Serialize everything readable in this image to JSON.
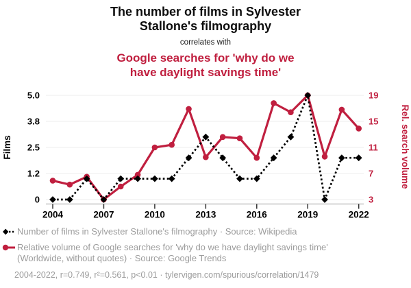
{
  "header": {
    "title_lines": [
      "The number of films in Sylvester",
      "Stallone's filmography"
    ],
    "connector": "correlates with",
    "subtitle_lines": [
      "Google searches for 'why do we",
      "have daylight savings time'"
    ]
  },
  "chart_data": {
    "type": "line",
    "x": [
      2004,
      2005,
      2006,
      2007,
      2008,
      2009,
      2010,
      2011,
      2012,
      2013,
      2014,
      2015,
      2016,
      2017,
      2018,
      2019,
      2020,
      2021,
      2022
    ],
    "x_ticks": [
      2004,
      2007,
      2010,
      2013,
      2016,
      2019,
      2022
    ],
    "series": [
      {
        "name": "Number of films in Sylvester Stallone's filmography",
        "axis": "left",
        "color": "#000000",
        "line_style": "dashed",
        "marker": "diamond",
        "values": [
          0,
          0,
          1,
          0,
          1,
          1,
          1,
          1,
          2,
          3,
          2,
          1,
          1,
          2,
          3,
          5,
          0,
          2,
          2
        ]
      },
      {
        "name": "Relative volume of Google searches for 'why do we have daylight savings time'",
        "axis": "right",
        "color": "#c01f3f",
        "line_style": "solid",
        "marker": "circle",
        "values": [
          5.9,
          5.3,
          6.5,
          3,
          5,
          6.8,
          11,
          11.4,
          16.9,
          9.5,
          12.6,
          12.4,
          9.4,
          17.8,
          16.4,
          19,
          9.6,
          16.8,
          13.9
        ]
      }
    ],
    "y_left": {
      "title": "Films",
      "min": 0,
      "max": 5,
      "tick_values": [
        0,
        1.25,
        2.5,
        3.75,
        5
      ],
      "tick_labels": [
        "0",
        "1.2",
        "2.5",
        "3.8",
        "5.0"
      ],
      "color": "#000000"
    },
    "y_right": {
      "title": "Rel. search volume",
      "min": 3,
      "max": 19,
      "tick_values": [
        3,
        7,
        11,
        15,
        19
      ],
      "tick_labels": [
        "3",
        "7",
        "11",
        "15",
        "19"
      ],
      "color": "#c01f3f"
    },
    "grid": true,
    "legend_position": "bottom"
  },
  "legend": {
    "items": [
      {
        "label": "Number of films in Sylvester Stallone's filmography · Source: Wikipedia"
      },
      {
        "label": "Relative volume of Google searches for 'why do we have daylight savings time' (Worldwide, without quotes) · Source: Google Trends"
      }
    ]
  },
  "footer": {
    "text": "2004-2022, r=0.749, r²=0.561, p<0.01 · tylervigen.com/spurious/correlation/1479"
  },
  "colors": {
    "accent_red": "#c01f3f",
    "series_black": "#000000",
    "legend_gray": "#9c9c9c",
    "grid_line": "#f0f0f0",
    "axis_line": "#b3b3b3",
    "tick_mark": "#333333"
  }
}
